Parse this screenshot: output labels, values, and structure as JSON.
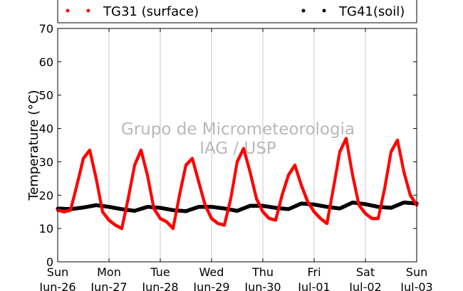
{
  "chart_data": {
    "type": "scatter",
    "ylabel": "Temperature (°C)",
    "ylim": [
      0,
      70
    ],
    "y_ticks": [
      "0",
      "10",
      "20",
      "30",
      "40",
      "50",
      "60",
      "70"
    ],
    "xlim": [
      "2013-06-26 00:00",
      "2013-07-03 00:00"
    ],
    "x_ticks": [
      {
        "day": "Sun",
        "date": "Jun-26"
      },
      {
        "day": "Mon",
        "date": "Jun-27"
      },
      {
        "day": "Tue",
        "date": "Jun-28"
      },
      {
        "day": "Wed",
        "date": "Jun-29"
      },
      {
        "day": "Thu",
        "date": "Jun-30"
      },
      {
        "day": "Fri",
        "date": "Jul-01"
      },
      {
        "day": "Sat",
        "date": "Jul-02"
      },
      {
        "day": "Sun",
        "date": "Jul-03"
      }
    ],
    "grid": "vertical",
    "legend_position": "top",
    "watermark": [
      "Grupo de Micrometeorologia",
      "IAG / USP"
    ],
    "series": [
      {
        "name": "TG31 (surface)",
        "color": "#ff0000",
        "marker": "dot",
        "points": [
          [
            "06-26 00:00",
            15.5
          ],
          [
            "06-26 03:00",
            15.0
          ],
          [
            "06-26 06:00",
            15.5
          ],
          [
            "06-26 09:00",
            23.0
          ],
          [
            "06-26 12:00",
            31.0
          ],
          [
            "06-26 15:00",
            33.5
          ],
          [
            "06-26 18:00",
            25.0
          ],
          [
            "06-26 21:00",
            15.0
          ],
          [
            "06-27 00:00",
            12.5
          ],
          [
            "06-27 03:00",
            11.0
          ],
          [
            "06-27 06:00",
            10.0
          ],
          [
            "06-27 09:00",
            19.0
          ],
          [
            "06-27 12:00",
            29.0
          ],
          [
            "06-27 15:00",
            33.5
          ],
          [
            "06-27 18:00",
            26.0
          ],
          [
            "06-27 21:00",
            16.0
          ],
          [
            "06-28 00:00",
            13.0
          ],
          [
            "06-28 03:00",
            12.0
          ],
          [
            "06-28 06:00",
            10.0
          ],
          [
            "06-28 09:00",
            20.0
          ],
          [
            "06-28 12:00",
            29.0
          ],
          [
            "06-28 15:00",
            31.0
          ],
          [
            "06-28 18:00",
            24.0
          ],
          [
            "06-28 21:00",
            17.0
          ],
          [
            "06-29 00:00",
            13.0
          ],
          [
            "06-29 03:00",
            11.5
          ],
          [
            "06-29 06:00",
            11.0
          ],
          [
            "06-29 09:00",
            19.0
          ],
          [
            "06-29 12:00",
            30.0
          ],
          [
            "06-29 15:00",
            34.0
          ],
          [
            "06-29 18:00",
            27.0
          ],
          [
            "06-29 21:00",
            19.0
          ],
          [
            "06-30 00:00",
            15.0
          ],
          [
            "06-30 03:00",
            13.0
          ],
          [
            "06-30 06:00",
            12.5
          ],
          [
            "06-30 09:00",
            20.0
          ],
          [
            "06-30 12:00",
            26.0
          ],
          [
            "06-30 15:00",
            29.0
          ],
          [
            "06-30 18:00",
            23.0
          ],
          [
            "06-30 21:00",
            18.0
          ],
          [
            "07-01 00:00",
            15.0
          ],
          [
            "07-01 03:00",
            13.0
          ],
          [
            "07-01 06:00",
            11.5
          ],
          [
            "07-01 09:00",
            22.0
          ],
          [
            "07-01 12:00",
            33.0
          ],
          [
            "07-01 15:00",
            37.0
          ],
          [
            "07-01 18:00",
            26.0
          ],
          [
            "07-01 21:00",
            17.0
          ],
          [
            "07-02 00:00",
            14.5
          ],
          [
            "07-02 03:00",
            13.0
          ],
          [
            "07-02 06:00",
            13.0
          ],
          [
            "07-02 09:00",
            22.0
          ],
          [
            "07-02 12:00",
            33.0
          ],
          [
            "07-02 15:00",
            36.5
          ],
          [
            "07-02 18:00",
            27.0
          ],
          [
            "07-02 21:00",
            20.0
          ],
          [
            "07-03 00:00",
            17.0
          ]
        ]
      },
      {
        "name": "TG41(soil)",
        "color": "#000000",
        "marker": "dot",
        "points": [
          [
            "06-26 00:00",
            16.0
          ],
          [
            "06-26 06:00",
            15.8
          ],
          [
            "06-26 12:00",
            16.3
          ],
          [
            "06-26 18:00",
            17.0
          ],
          [
            "06-27 00:00",
            16.5
          ],
          [
            "06-27 06:00",
            15.8
          ],
          [
            "06-27 12:00",
            15.3
          ],
          [
            "06-27 18:00",
            16.5
          ],
          [
            "06-28 00:00",
            16.2
          ],
          [
            "06-28 06:00",
            15.5
          ],
          [
            "06-28 12:00",
            15.2
          ],
          [
            "06-28 18:00",
            16.5
          ],
          [
            "06-29 00:00",
            16.5
          ],
          [
            "06-29 06:00",
            16.0
          ],
          [
            "06-29 12:00",
            15.3
          ],
          [
            "06-29 18:00",
            16.8
          ],
          [
            "06-30 00:00",
            16.8
          ],
          [
            "06-30 06:00",
            16.2
          ],
          [
            "06-30 12:00",
            15.8
          ],
          [
            "06-30 18:00",
            17.5
          ],
          [
            "07-01 00:00",
            17.2
          ],
          [
            "07-01 06:00",
            16.5
          ],
          [
            "07-01 12:00",
            16.0
          ],
          [
            "07-01 18:00",
            17.8
          ],
          [
            "07-02 00:00",
            17.3
          ],
          [
            "07-02 06:00",
            16.5
          ],
          [
            "07-02 12:00",
            16.2
          ],
          [
            "07-02 18:00",
            17.8
          ],
          [
            "07-03 00:00",
            17.5
          ]
        ]
      }
    ]
  }
}
